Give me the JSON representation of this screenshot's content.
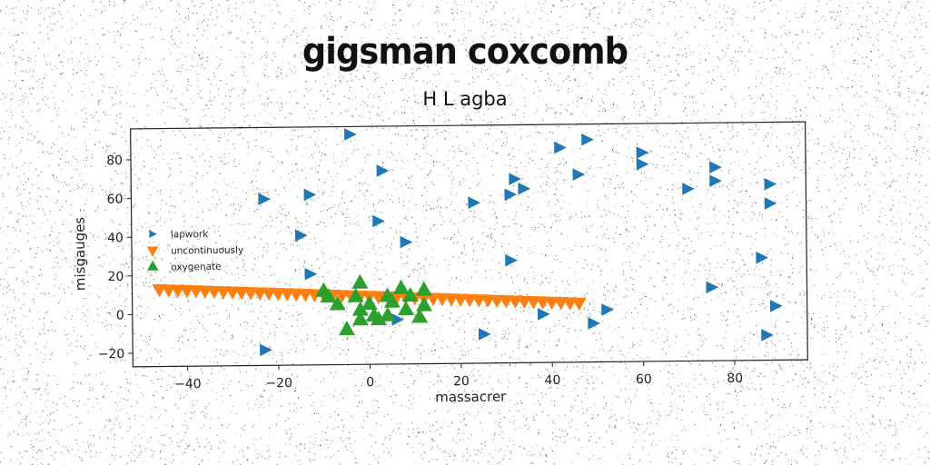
{
  "chart_data": {
    "type": "scatter",
    "title": "gigsman coxcomb",
    "subtitle": "H L agba",
    "xlabel": "massacrer",
    "ylabel": "misgauges",
    "xlim": [
      -52,
      96
    ],
    "ylim": [
      -27,
      96
    ],
    "xticks": [
      -40,
      -20,
      0,
      20,
      40,
      60,
      80
    ],
    "yticks": [
      -20,
      0,
      20,
      40,
      60,
      80
    ],
    "xtick_labels": [
      "−40",
      "−20",
      "0",
      "20",
      "40",
      "60",
      "80"
    ],
    "ytick_labels": [
      "−20",
      "0",
      "20",
      "40",
      "60",
      "80"
    ],
    "grid": false,
    "legend_position": "center-left",
    "series": [
      {
        "name": "lapwork",
        "marker": "triangle-right",
        "color": "#1f77b4",
        "points": [
          [
            -4,
            92
          ],
          [
            48,
            88
          ],
          [
            42,
            84
          ],
          [
            60,
            81
          ],
          [
            60,
            75
          ],
          [
            3,
            73
          ],
          [
            46,
            70
          ],
          [
            76,
            73
          ],
          [
            32,
            68
          ],
          [
            76,
            66
          ],
          [
            34,
            63
          ],
          [
            31,
            60
          ],
          [
            -13,
            61
          ],
          [
            -23,
            59
          ],
          [
            70,
            62
          ],
          [
            88,
            64
          ],
          [
            23,
            56
          ],
          [
            88,
            54
          ],
          [
            2,
            47
          ],
          [
            -15,
            40
          ],
          [
            8,
            36
          ],
          [
            31,
            26
          ],
          [
            86,
            26
          ],
          [
            -13,
            20
          ],
          [
            75,
            11
          ],
          [
            38,
            -2
          ],
          [
            6,
            -4
          ],
          [
            52,
            0
          ],
          [
            89,
            1
          ],
          [
            49,
            -7
          ],
          [
            25,
            -12
          ],
          [
            87,
            -14
          ],
          [
            -23,
            -19
          ]
        ]
      },
      {
        "name": "uncontinuously",
        "marker": "triangle-down",
        "color": "#ff7f0e",
        "points": [
          [
            -46,
            13.0
          ],
          [
            -44,
            12.8
          ],
          [
            -42,
            12.6
          ],
          [
            -40,
            12.4
          ],
          [
            -38,
            12.2
          ],
          [
            -36,
            12.0
          ],
          [
            -34,
            11.8
          ],
          [
            -32,
            11.6
          ],
          [
            -30,
            11.4
          ],
          [
            -28,
            11.2
          ],
          [
            -26,
            11.0
          ],
          [
            -24,
            10.8
          ],
          [
            -22,
            10.6
          ],
          [
            -20,
            10.4
          ],
          [
            -18,
            10.2
          ],
          [
            -16,
            10.0
          ],
          [
            -14,
            9.8
          ],
          [
            -12,
            9.6
          ],
          [
            -10,
            9.4
          ],
          [
            -8,
            9.2
          ],
          [
            -6,
            9.0
          ],
          [
            -4,
            8.8
          ],
          [
            -2,
            8.6
          ],
          [
            0,
            8.4
          ],
          [
            2,
            8.2
          ],
          [
            4,
            8.0
          ],
          [
            6,
            7.8
          ],
          [
            8,
            7.6
          ],
          [
            10,
            7.4
          ],
          [
            12,
            7.2
          ],
          [
            14,
            7.0
          ],
          [
            16,
            6.8
          ],
          [
            18,
            6.6
          ],
          [
            20,
            6.4
          ],
          [
            22,
            6.2
          ],
          [
            24,
            6.0
          ],
          [
            26,
            5.8
          ],
          [
            28,
            5.6
          ],
          [
            30,
            5.4
          ],
          [
            32,
            5.2
          ],
          [
            34,
            5.0
          ],
          [
            36,
            4.8
          ],
          [
            38,
            4.6
          ],
          [
            40,
            4.4
          ],
          [
            42,
            4.2
          ],
          [
            44,
            4.0
          ],
          [
            46,
            3.8
          ]
        ]
      },
      {
        "name": "oxygenate",
        "marker": "triangle-up",
        "color": "#2ca02c",
        "points": [
          [
            -10,
            11
          ],
          [
            -2,
            15
          ],
          [
            7,
            12
          ],
          [
            12,
            11
          ],
          [
            -9,
            8
          ],
          [
            -3,
            8
          ],
          [
            4,
            8
          ],
          [
            9,
            8
          ],
          [
            -7,
            4
          ],
          [
            0,
            4
          ],
          [
            5,
            5
          ],
          [
            12,
            3
          ],
          [
            -2,
            1
          ],
          [
            1,
            -2
          ],
          [
            4,
            -2
          ],
          [
            8,
            1
          ],
          [
            11,
            -3
          ],
          [
            -2,
            -4
          ],
          [
            2,
            -4
          ],
          [
            -5,
            -9
          ]
        ]
      }
    ]
  }
}
